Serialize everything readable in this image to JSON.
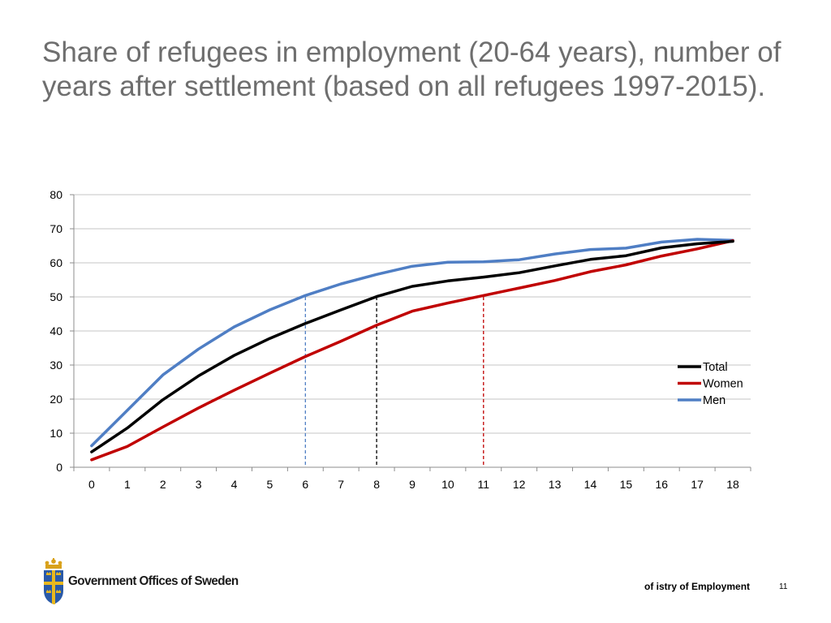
{
  "title": {
    "line1": "Share of refugees in employment (20-64 years), number of",
    "line2": "years after settlement (based on all refugees 1997-2015)."
  },
  "chart_data": {
    "type": "line",
    "title": "Share of refugees in employment (20-64 years), number of years after settlement (based on all refugees 1997-2015).",
    "xlabel": "",
    "ylabel": "",
    "x": [
      0,
      1,
      2,
      3,
      4,
      5,
      6,
      7,
      8,
      9,
      10,
      11,
      12,
      13,
      14,
      15,
      16,
      17,
      18
    ],
    "ylim": [
      0,
      80
    ],
    "yticks": [
      0,
      10,
      20,
      30,
      40,
      50,
      60,
      70,
      80
    ],
    "grid": "horizontal",
    "legend_position": "right",
    "series": [
      {
        "name": "Total",
        "color": "#000000",
        "values": [
          4.5,
          11.5,
          19.8,
          26.8,
          32.8,
          37.8,
          42.2,
          46.2,
          50.1,
          53.1,
          54.7,
          55.8,
          57.1,
          59.1,
          61.0,
          62.1,
          64.4,
          65.6,
          66.3
        ]
      },
      {
        "name": "Women",
        "color": "#c00000",
        "values": [
          2.2,
          6.1,
          11.8,
          17.4,
          22.6,
          27.6,
          32.5,
          37.0,
          41.7,
          45.8,
          48.2,
          50.4,
          52.6,
          54.8,
          57.4,
          59.4,
          62.0,
          64.1,
          66.5
        ]
      },
      {
        "name": "Men",
        "color": "#4f7ec4",
        "values": [
          6.3,
          16.7,
          27.1,
          34.7,
          41.2,
          46.2,
          50.4,
          53.8,
          56.6,
          59.0,
          60.2,
          60.3,
          60.9,
          62.6,
          63.9,
          64.3,
          66.1,
          66.9,
          66.6
        ]
      }
    ],
    "reference_lines": [
      {
        "x": 6,
        "y": 50,
        "color": "#4f7ec4"
      },
      {
        "x": 8,
        "y": 50,
        "color": "#000000"
      },
      {
        "x": 11,
        "y": 50,
        "color": "#c00000"
      }
    ]
  },
  "footer": {
    "org": "Government Offices of Sweden",
    "ministry": "of istry of Employment",
    "page": "11",
    "logo_icon": "crown-shield-icon"
  }
}
